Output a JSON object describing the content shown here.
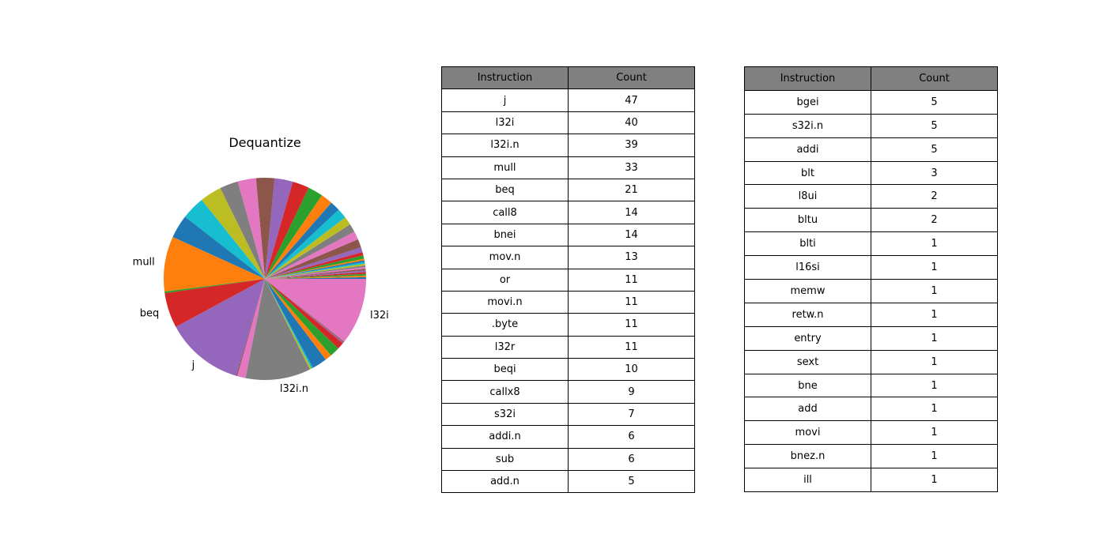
{
  "chart_data": [
    {
      "type": "pie",
      "title": "Dequantize",
      "start_angle_deg": 0,
      "direction": "counterclockwise",
      "colors": [
        "#1f77b4",
        "#ff7f0e",
        "#2ca02c",
        "#d62728",
        "#9467bd",
        "#8c564b",
        "#e377c2",
        "#7f7f7f",
        "#bcbd22",
        "#17becf"
      ],
      "slices": [
        {
          "label": "",
          "value": 1
        },
        {
          "label": "",
          "value": 1
        },
        {
          "label": "",
          "value": 1
        },
        {
          "label": "",
          "value": 1
        },
        {
          "label": "",
          "value": 1
        },
        {
          "label": "",
          "value": 1
        },
        {
          "label": "",
          "value": 1
        },
        {
          "label": "",
          "value": 1
        },
        {
          "label": "",
          "value": 1
        },
        {
          "label": "",
          "value": 1
        },
        {
          "label": "",
          "value": 1
        },
        {
          "label": "",
          "value": 1
        },
        {
          "label": "",
          "value": 2
        },
        {
          "label": "",
          "value": 2
        },
        {
          "label": "",
          "value": 3
        },
        {
          "label": "",
          "value": 5
        },
        {
          "label": "",
          "value": 5
        },
        {
          "label": "",
          "value": 5
        },
        {
          "label": "",
          "value": 5
        },
        {
          "label": "",
          "value": 6
        },
        {
          "label": "",
          "value": 6
        },
        {
          "label": "",
          "value": 7
        },
        {
          "label": "",
          "value": 9
        },
        {
          "label": "",
          "value": 10
        },
        {
          "label": "",
          "value": 11
        },
        {
          "label": "",
          "value": 11
        },
        {
          "label": "",
          "value": 11
        },
        {
          "label": "",
          "value": 11
        },
        {
          "label": "",
          "value": 13
        },
        {
          "label": "",
          "value": 14
        },
        {
          "label": "",
          "value": 14
        },
        {
          "label": "mull",
          "value": 33
        },
        {
          "label": "",
          "value": 1
        },
        {
          "label": "beq",
          "value": 21
        },
        {
          "label": "j",
          "value": 47
        },
        {
          "label": "",
          "value": 0.7
        },
        {
          "label": "",
          "value": 5
        },
        {
          "label": "l32i.n",
          "value": 39
        },
        {
          "label": "",
          "value": 1
        },
        {
          "label": "",
          "value": 1
        },
        {
          "label": "",
          "value": 9
        },
        {
          "label": "",
          "value": 4
        },
        {
          "label": "",
          "value": 6
        },
        {
          "label": "",
          "value": 4
        },
        {
          "label": "",
          "value": 0.6
        },
        {
          "label": "",
          "value": 0.6
        },
        {
          "label": "l32i",
          "value": 40
        }
      ]
    },
    {
      "type": "table",
      "columns": [
        "Instruction",
        "Count"
      ],
      "rows": [
        [
          "j",
          "47"
        ],
        [
          "l32i",
          "40"
        ],
        [
          "l32i.n",
          "39"
        ],
        [
          "mull",
          "33"
        ],
        [
          "beq",
          "21"
        ],
        [
          "call8",
          "14"
        ],
        [
          "bnei",
          "14"
        ],
        [
          "mov.n",
          "13"
        ],
        [
          "or",
          "11"
        ],
        [
          "movi.n",
          "11"
        ],
        [
          ".byte",
          "11"
        ],
        [
          "l32r",
          "11"
        ],
        [
          "beqi",
          "10"
        ],
        [
          "callx8",
          "9"
        ],
        [
          "s32i",
          "7"
        ],
        [
          "addi.n",
          "6"
        ],
        [
          "sub",
          "6"
        ],
        [
          "add.n",
          "5"
        ]
      ]
    },
    {
      "type": "table",
      "columns": [
        "Instruction",
        "Count"
      ],
      "rows": [
        [
          "bgei",
          "5"
        ],
        [
          "s32i.n",
          "5"
        ],
        [
          "addi",
          "5"
        ],
        [
          "blt",
          "3"
        ],
        [
          "l8ui",
          "2"
        ],
        [
          "bltu",
          "2"
        ],
        [
          "blti",
          "1"
        ],
        [
          "l16si",
          "1"
        ],
        [
          "memw",
          "1"
        ],
        [
          "retw.n",
          "1"
        ],
        [
          "entry",
          "1"
        ],
        [
          "sext",
          "1"
        ],
        [
          "bne",
          "1"
        ],
        [
          "add",
          "1"
        ],
        [
          "movi",
          "1"
        ],
        [
          "bnez.n",
          "1"
        ],
        [
          "ill",
          "1"
        ]
      ]
    }
  ]
}
